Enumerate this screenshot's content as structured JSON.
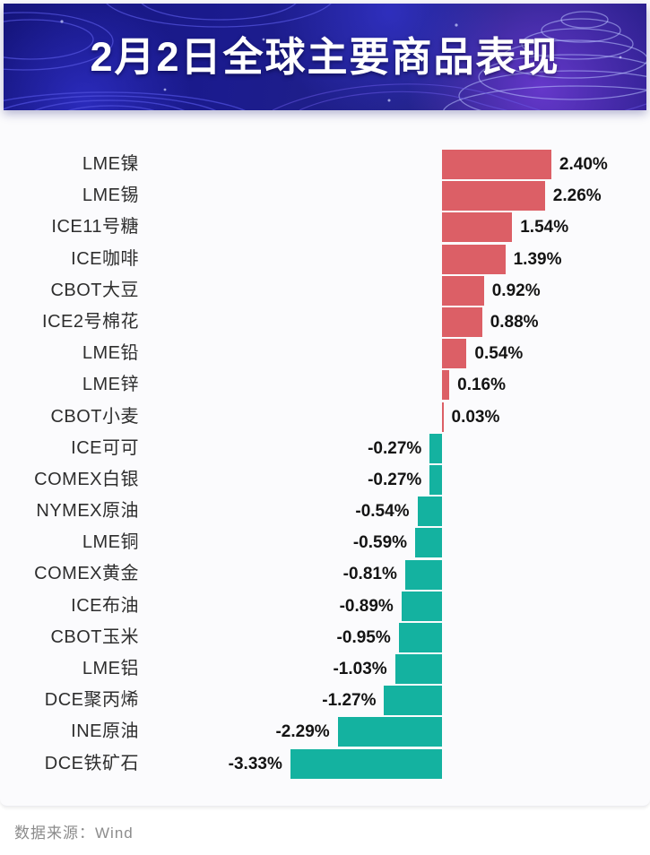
{
  "header": {
    "title": "2月2日全球主要商品表现"
  },
  "footer": {
    "source_label": "数据来源：Wind"
  },
  "chart_data": {
    "type": "bar",
    "orientation": "horizontal",
    "title": "2月2日全球主要商品表现",
    "xlabel": "",
    "ylabel": "",
    "value_suffix": "%",
    "xlim": [
      -3.6,
      2.7
    ],
    "grid": false,
    "legend": "none",
    "categories": [
      "LME镍",
      "LME锡",
      "ICE11号糖",
      "ICE咖啡",
      "CBOT大豆",
      "ICE2号棉花",
      "LME铅",
      "LME锌",
      "CBOT小麦",
      "ICE可可",
      "COMEX白银",
      "NYMEX原油",
      "LME铜",
      "COMEX黄金",
      "ICE布油",
      "CBOT玉米",
      "LME铝",
      "DCE聚丙烯",
      "INE原油",
      "DCE铁矿石"
    ],
    "values": [
      2.4,
      2.26,
      1.54,
      1.39,
      0.92,
      0.88,
      0.54,
      0.16,
      0.03,
      -0.27,
      -0.27,
      -0.54,
      -0.59,
      -0.81,
      -0.89,
      -0.95,
      -1.03,
      -1.27,
      -2.29,
      -3.33
    ],
    "value_labels": [
      "2.40%",
      "2.26%",
      "1.54%",
      "1.39%",
      "0.92%",
      "0.88%",
      "0.54%",
      "0.16%",
      "0.03%",
      "-0.27%",
      "-0.27%",
      "-0.54%",
      "-0.59%",
      "-0.81%",
      "-0.89%",
      "-0.95%",
      "-1.03%",
      "-1.27%",
      "-2.29%",
      "-3.33%"
    ],
    "colors": {
      "positive": "#dc5f66",
      "negative": "#14b2a0"
    }
  }
}
